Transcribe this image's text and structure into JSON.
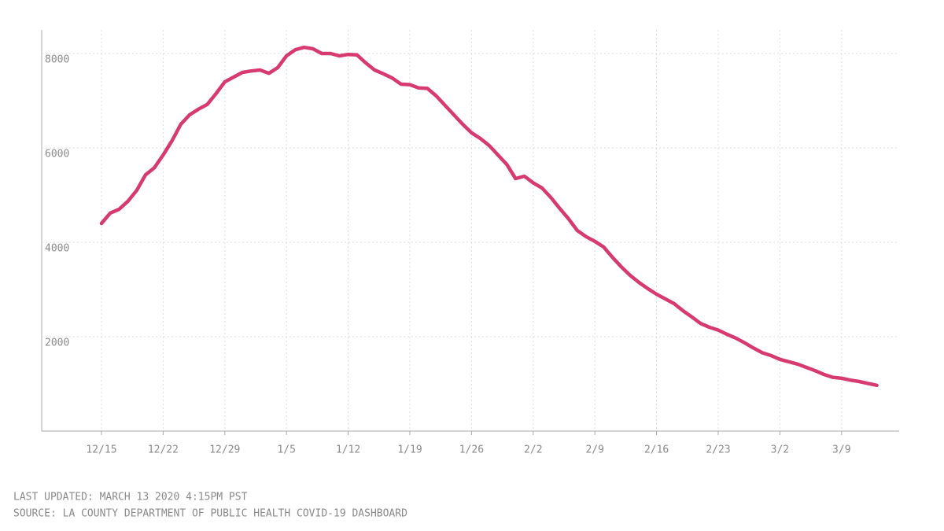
{
  "chart_data": {
    "type": "line",
    "categories": [
      "12/15",
      null,
      null,
      null,
      null,
      null,
      null,
      "12/22",
      null,
      null,
      null,
      null,
      null,
      null,
      "12/29",
      null,
      null,
      null,
      null,
      null,
      null,
      "1/5",
      null,
      null,
      null,
      null,
      null,
      null,
      "1/12",
      null,
      null,
      null,
      null,
      null,
      null,
      "1/19",
      null,
      null,
      null,
      null,
      null,
      null,
      "1/26",
      null,
      null,
      null,
      null,
      null,
      null,
      "2/2",
      null,
      null,
      null,
      null,
      null,
      null,
      "2/9",
      null,
      null,
      null,
      null,
      null,
      null,
      "2/16",
      null,
      null,
      null,
      null,
      null,
      null,
      "2/23",
      null,
      null,
      null,
      null,
      null,
      null,
      "3/2",
      null,
      null,
      null,
      null,
      null,
      null,
      "3/9",
      null,
      null,
      null,
      null
    ],
    "series": [
      {
        "color": "#d63a6f",
        "values": [
          4400,
          4620,
          4700,
          4870,
          5100,
          5430,
          5580,
          5850,
          6150,
          6500,
          6700,
          6820,
          6920,
          7150,
          7400,
          7500,
          7600,
          7630,
          7650,
          7580,
          7700,
          7950,
          8080,
          8130,
          8100,
          8000,
          8000,
          7950,
          7980,
          7970,
          7800,
          7650,
          7570,
          7480,
          7350,
          7340,
          7270,
          7260,
          7100,
          6900,
          6700,
          6500,
          6320,
          6200,
          6050,
          5850,
          5650,
          5350,
          5400,
          5260,
          5150,
          4950,
          4720,
          4500,
          4250,
          4120,
          4020,
          3900,
          3680,
          3480,
          3300,
          3150,
          3020,
          2900,
          2800,
          2700,
          2550,
          2420,
          2280,
          2200,
          2140,
          2050,
          1970,
          1870,
          1760,
          1660,
          1600,
          1520,
          1470,
          1420,
          1350,
          1280,
          1200,
          1140,
          1120,
          1080,
          1050,
          1010,
          970
        ]
      }
    ],
    "ylim": [
      0,
      8500
    ],
    "yticks": [
      2000,
      4000,
      6000,
      8000
    ],
    "grid": true,
    "notes": [
      "LAST UPDATED: MARCH 13 2020 4:15PM PST",
      "SOURCE: LA COUNTY DEPARTMENT OF PUBLIC HEALTH COVID-19 DASHBOARD"
    ]
  }
}
